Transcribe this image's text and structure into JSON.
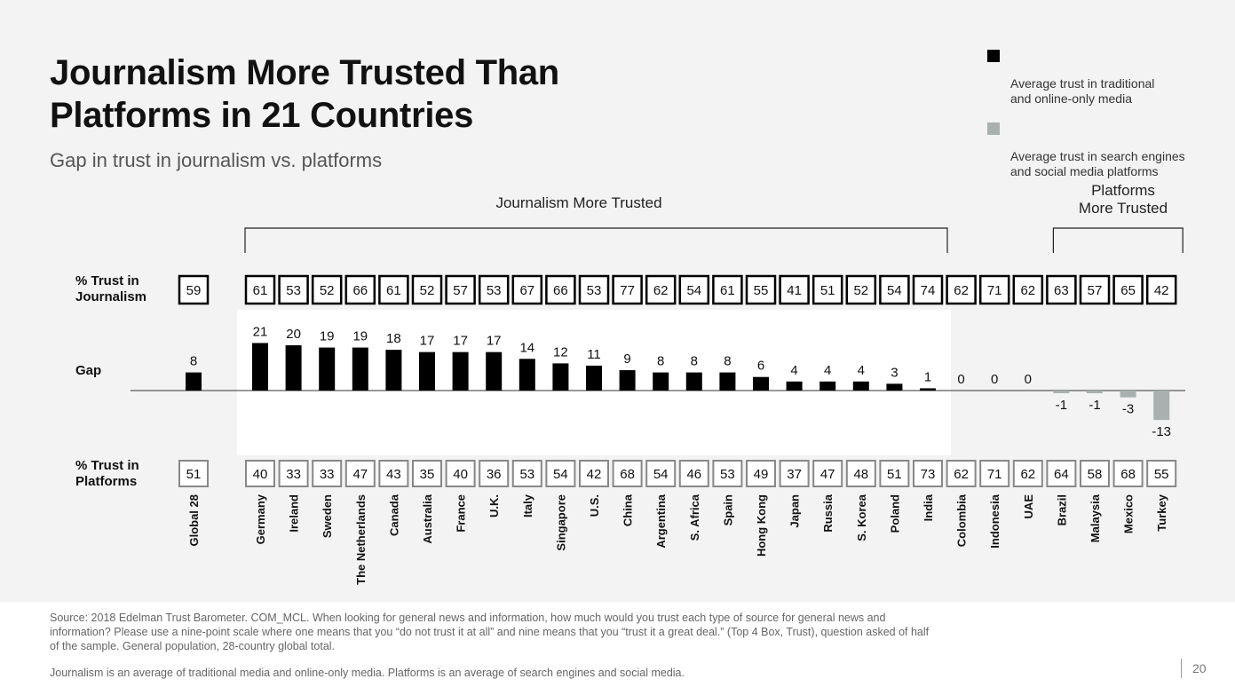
{
  "title": "Journalism More Trusted Than\nPlatforms in 21 Countries",
  "subtitle": "Gap in trust in journalism vs. platforms",
  "legend": {
    "journalism": "Average trust in traditional\nand online-only media",
    "platforms": "Average trust in search engines\nand social media platforms"
  },
  "row_labels": {
    "journalism": "% Trust in\nJournalism",
    "gap": "Gap",
    "platforms": "% Trust in\nPlatforms"
  },
  "group_labels": {
    "journalism_more": "Journalism More Trusted",
    "platforms_more": "Platforms\nMore Trusted"
  },
  "colors": {
    "positive": "#000000",
    "negative": "#a9b0b0",
    "highlight_panel": "#ffffff",
    "box_journalism": "#000000",
    "box_platforms": "#888888"
  },
  "chart_data": {
    "type": "bar",
    "title": "Gap in trust in journalism vs. platforms",
    "xlabel": "",
    "ylabel": "Gap",
    "categories": [
      "Global 28",
      "Germany",
      "Ireland",
      "Sweden",
      "The Netherlands",
      "Canada",
      "Australia",
      "France",
      "U.K.",
      "Italy",
      "Singapore",
      "U.S.",
      "China",
      "Argentina",
      "S. Africa",
      "Spain",
      "Hong Kong",
      "Japan",
      "Russia",
      "S. Korea",
      "Poland",
      "India",
      "Colombia",
      "Indonesia",
      "UAE",
      "Brazil",
      "Malaysia",
      "Mexico",
      "Turkey"
    ],
    "series": [
      {
        "name": "Gap",
        "values": [
          8,
          21,
          20,
          19,
          19,
          18,
          17,
          17,
          17,
          14,
          12,
          11,
          9,
          8,
          8,
          8,
          6,
          4,
          4,
          4,
          3,
          1,
          0,
          0,
          0,
          -1,
          -1,
          -3,
          -13
        ]
      },
      {
        "name": "% Trust in Journalism",
        "values": [
          59,
          61,
          53,
          52,
          66,
          61,
          52,
          57,
          53,
          67,
          66,
          53,
          77,
          62,
          54,
          61,
          55,
          41,
          51,
          52,
          54,
          74,
          62,
          71,
          62,
          63,
          57,
          65,
          42
        ]
      },
      {
        "name": "% Trust in Platforms",
        "values": [
          51,
          40,
          33,
          33,
          47,
          43,
          35,
          40,
          36,
          53,
          54,
          42,
          68,
          54,
          46,
          53,
          49,
          37,
          47,
          48,
          51,
          73,
          62,
          71,
          62,
          64,
          58,
          68,
          55
        ]
      }
    ],
    "ylim": [
      -13,
      21
    ]
  },
  "footer": {
    "source": "Source: 2018 Edelman Trust Barometer. COM_MCL. When looking for general news and information, how much would you trust each type of source for general news and information? Please use a nine-point scale where one means that you “do not trust it at all” and nine means that you “trust it a great deal.” (Top 4 Box, Trust), question asked of half of the sample. General population, 28-country global total.",
    "note": "Journalism is an average of traditional media and online-only media. Platforms is an average of search engines and social media."
  },
  "page_number": "20"
}
